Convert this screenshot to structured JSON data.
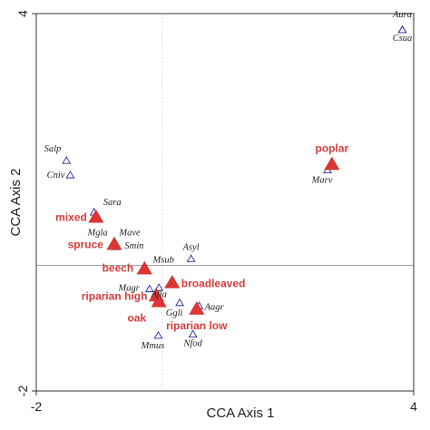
{
  "chart_data": {
    "type": "scatter",
    "xlabel": "CCA Axis 1",
    "ylabel": "CCA Axis 2",
    "xlim": [
      -2,
      4
    ],
    "ylim": [
      -2,
      4
    ],
    "x_ticks": [
      {
        "value": -2,
        "label": "-2"
      },
      {
        "value": 4,
        "label": "4"
      }
    ],
    "y_ticks": [
      {
        "value": -2,
        "label": "-2"
      },
      {
        "value": 4,
        "label": "4"
      }
    ],
    "reference_lines": {
      "x": 0,
      "y": 0
    },
    "grid": false,
    "colors": {
      "species": "#2a2a9a",
      "group": "#e03535",
      "group_label": "#d93a3a"
    },
    "species": [
      {
        "name": "Aura",
        "x": 3.82,
        "y": 3.74
      },
      {
        "name": "Csua",
        "x": 3.82,
        "y": 3.74
      },
      {
        "name": "Salp",
        "x": -1.52,
        "y": 1.66
      },
      {
        "name": "Cniv",
        "x": -1.46,
        "y": 1.43
      },
      {
        "name": "Sara",
        "x": -1.08,
        "y": 0.84
      },
      {
        "name": "Mave",
        "x": -0.74,
        "y": 0.3
      },
      {
        "name": "Mgla",
        "x": -0.75,
        "y": 0.3
      },
      {
        "name": "Smin",
        "x": -0.74,
        "y": 0.29
      },
      {
        "name": "Asyl",
        "x": 0.46,
        "y": 0.1
      },
      {
        "name": "Msub",
        "x": -0.29,
        "y": -0.06
      },
      {
        "name": "Magr",
        "x": -0.2,
        "y": -0.38
      },
      {
        "name": "Afla",
        "x": -0.05,
        "y": -0.36
      },
      {
        "name": "Ggli",
        "x": 0.28,
        "y": -0.6
      },
      {
        "name": "Aagr",
        "x": 0.59,
        "y": -0.65
      },
      {
        "name": "Nfod",
        "x": 0.49,
        "y": -1.1
      },
      {
        "name": "Mmus",
        "x": -0.06,
        "y": -1.12
      },
      {
        "name": "Marv",
        "x": 2.63,
        "y": 1.51
      }
    ],
    "groups": [
      {
        "name": "poplar",
        "x": 2.7,
        "y": 1.6
      },
      {
        "name": "mixed",
        "x": -1.05,
        "y": 0.76
      },
      {
        "name": "spruce",
        "x": -0.76,
        "y": 0.33
      },
      {
        "name": "beech",
        "x": -0.28,
        "y": -0.06
      },
      {
        "name": "broadleaved",
        "x": 0.16,
        "y": -0.28
      },
      {
        "name": "riparian high",
        "x": -0.09,
        "y": -0.49
      },
      {
        "name": "oak",
        "x": -0.05,
        "y": -0.58
      },
      {
        "name": "riparian low",
        "x": 0.55,
        "y": -0.7
      }
    ]
  }
}
